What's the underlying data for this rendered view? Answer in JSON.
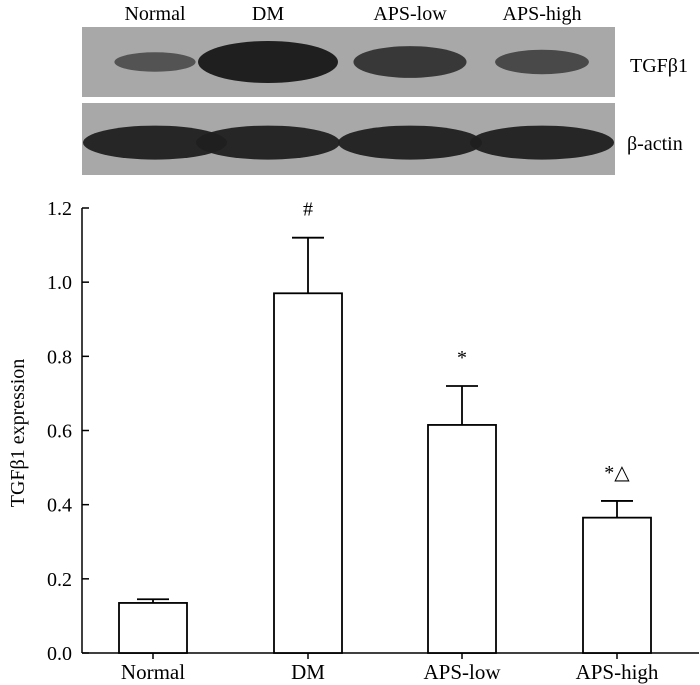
{
  "blot": {
    "lanes": [
      "Normal",
      "DM",
      "APS-low",
      "APS-high"
    ],
    "rows": [
      {
        "protein": "TGFβ1",
        "band_intensity": [
          0.3,
          1.0,
          0.68,
          0.45
        ]
      },
      {
        "protein": "β-actin",
        "band_intensity": [
          1.0,
          1.0,
          1.0,
          1.0
        ]
      }
    ],
    "colors": {
      "background": "#a8a8a8",
      "band": "#1f1f1f"
    }
  },
  "chart_data": {
    "type": "bar",
    "categories": [
      "Normal",
      "DM",
      "APS-low",
      "APS-high"
    ],
    "values": [
      0.135,
      0.97,
      0.615,
      0.365
    ],
    "errors": [
      0.01,
      0.15,
      0.105,
      0.045
    ],
    "annotations": [
      "",
      "#",
      "*",
      "*△"
    ],
    "title": "",
    "xlabel": "",
    "ylabel": "TGFβ1 expression",
    "ylim": [
      0,
      1.2
    ],
    "yticks": [
      "0.0",
      "0.2",
      "0.4",
      "0.6",
      "0.8",
      "1.0",
      "1.2"
    ],
    "grid": false,
    "bar_fill": "#ffffff",
    "bar_stroke": "#000000"
  }
}
